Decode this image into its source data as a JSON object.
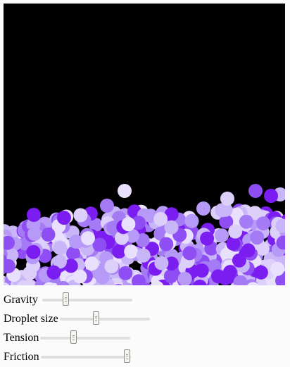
{
  "simulation": {
    "background_color": "#000000",
    "droplet_colors": [
      "#7b1cf0",
      "#8e4ef3",
      "#a47af5",
      "#b79af7",
      "#c8b6f8",
      "#dcd0fb",
      "#e8e0fc"
    ]
  },
  "controls": {
    "gravity": {
      "label": "Gravity",
      "value": 0.27
    },
    "droplet_size": {
      "label": "Droplet size",
      "value": 0.41
    },
    "tension": {
      "label": "Tension",
      "value": 0.37
    },
    "friction": {
      "label": "Friction",
      "value": 0.96
    }
  }
}
